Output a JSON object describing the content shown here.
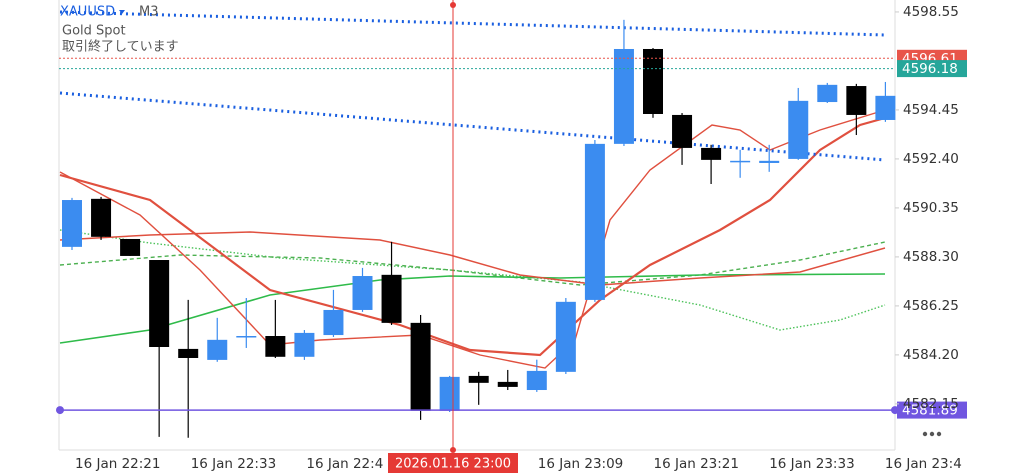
{
  "chart_data": {
    "type": "candlestick",
    "symbol": "XAUUSD",
    "timeframe": "M3",
    "subtitle": "Gold Spot",
    "status": "取引終了しています",
    "open": [
      4588.72,
      4590.73,
      4589.05,
      4588.17,
      4584.45,
      4583.99,
      4584.99,
      4584.99,
      4584.12,
      4585.03,
      4586.08,
      4587.55,
      4585.54,
      4581.86,
      4583.32,
      4583.07,
      4582.73,
      4583.49,
      4586.5,
      4593.03,
      4597.0,
      4594.24,
      4592.86,
      4592.32,
      4592.23,
      4592.4,
      4594.78,
      4595.45,
      4594.03
    ],
    "high": [
      4590.77,
      4590.81,
      4589.05,
      4588.17,
      4586.5,
      4585.75,
      4586.58,
      4586.5,
      4585.24,
      4586.92,
      4587.84,
      4588.93,
      4585.87,
      4583.32,
      4583.49,
      4583.57,
      4584.0,
      4586.58,
      4593.19,
      4598.22,
      4597.04,
      4594.32,
      4592.99,
      4592.78,
      4592.99,
      4595.37,
      4595.58,
      4595.54,
      4595.62
    ],
    "low": [
      4588.59,
      4589.01,
      4588.34,
      4580.77,
      4580.73,
      4583.91,
      4584.49,
      4584.07,
      4583.99,
      4584.95,
      4586.0,
      4585.45,
      4581.48,
      4581.81,
      4582.11,
      4582.73,
      4582.65,
      4583.4,
      4586.42,
      4592.94,
      4594.12,
      4592.15,
      4591.35,
      4591.61,
      4591.86,
      4592.36,
      4594.74,
      4593.4,
      4593.95
    ],
    "close": [
      4590.68,
      4589.14,
      4588.34,
      4584.53,
      4584.07,
      4584.83,
      4584.99,
      4584.12,
      4585.12,
      4586.08,
      4587.5,
      4585.54,
      4581.86,
      4583.28,
      4583.03,
      4582.86,
      4583.53,
      4586.42,
      4593.03,
      4597.0,
      4594.28,
      4592.86,
      4592.36,
      4592.32,
      4592.32,
      4594.83,
      4595.5,
      4594.24,
      4595.04
    ],
    "up_color": "#3b8cf0",
    "down_color": "#000000",
    "ylim": [
      4580.22,
      4599.05
    ],
    "yticks": [
      4598.55,
      {
        "value": 4594.45,
        "label": "4594.45"
      },
      {
        "value": 4592.4,
        "label": "4592.40"
      },
      4590.35,
      {
        "value": 4588.3,
        "label": "4588.30"
      },
      4586.25,
      {
        "value": 4584.2,
        "label": "4584.20"
      },
      4582.15
    ],
    "price_lines": [
      {
        "value": 4596.61,
        "color": "#e8554a"
      },
      {
        "value": 4596.18,
        "color": "#26a69a"
      },
      {
        "value": 4581.89,
        "color": "#7056e0"
      }
    ],
    "x_labels": [
      "16 Jan 22:21",
      "16 Jan 22:33",
      "16 Jan 22:4",
      "16 Jan 23:09",
      "16 Jan 23:21",
      "16 Jan 23:33",
      "16 Jan 23:4"
    ],
    "crosshair_label": "2026.01.16 23:00"
  }
}
